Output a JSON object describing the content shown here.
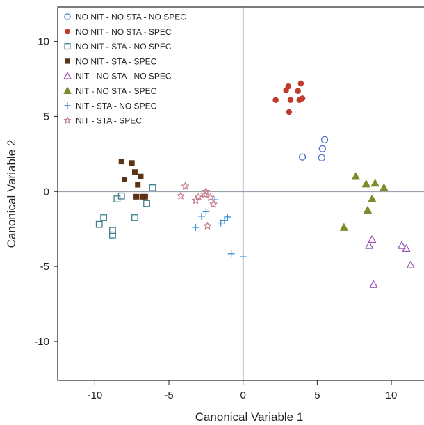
{
  "chart_data": {
    "type": "scatter",
    "xlabel": "Canonical Variable 1",
    "ylabel": "Canonical Variable 2",
    "xlim": [
      -12.5,
      12.2
    ],
    "ylim": [
      -12.6,
      12.3
    ],
    "xticks": [
      -10,
      -5,
      0,
      5,
      10
    ],
    "yticks": [
      -10,
      -5,
      0,
      5,
      10
    ],
    "reference_lines": {
      "x": 0,
      "y": 0
    },
    "legend_position": "top-left",
    "series": [
      {
        "name": "NO NIT - NO STA - NO SPEC",
        "marker": "circle-open",
        "color": "#4a6fc4",
        "points": [
          [
            4.0,
            2.3
          ],
          [
            5.3,
            2.25
          ],
          [
            5.35,
            2.85
          ],
          [
            5.5,
            3.45
          ]
        ]
      },
      {
        "name": "NO NIT - NO STA - SPEC",
        "marker": "circle-filled",
        "color": "#c0392b",
        "points": [
          [
            2.2,
            6.1
          ],
          [
            2.9,
            6.75
          ],
          [
            3.05,
            7.0
          ],
          [
            3.1,
            5.3
          ],
          [
            3.2,
            6.1
          ],
          [
            3.7,
            6.7
          ],
          [
            3.8,
            6.1
          ],
          [
            3.9,
            7.2
          ],
          [
            4.0,
            6.2
          ]
        ]
      },
      {
        "name": "NO NIT - STA - NO SPEC",
        "marker": "square-open",
        "color": "#3f7f8a",
        "points": [
          [
            -9.7,
            -2.2
          ],
          [
            -9.4,
            -1.75
          ],
          [
            -8.8,
            -2.6
          ],
          [
            -8.8,
            -2.9
          ],
          [
            -8.5,
            -0.5
          ],
          [
            -8.2,
            -0.3
          ],
          [
            -7.3,
            -1.75
          ],
          [
            -6.5,
            -0.8
          ],
          [
            -6.1,
            0.25
          ]
        ]
      },
      {
        "name": "NO NIT - STA - SPEC",
        "marker": "square-filled",
        "color": "#5b3314",
        "points": [
          [
            -8.2,
            2.0
          ],
          [
            -8.0,
            0.8
          ],
          [
            -7.5,
            1.9
          ],
          [
            -7.3,
            1.3
          ],
          [
            -7.2,
            -0.35
          ],
          [
            -7.1,
            0.45
          ],
          [
            -6.9,
            1.0
          ],
          [
            -6.8,
            -0.35
          ],
          [
            -6.6,
            -0.35
          ]
        ]
      },
      {
        "name": "NIT - NO STA - NO SPEC",
        "marker": "triangle-open",
        "color": "#9b59b6",
        "points": [
          [
            8.5,
            -3.6
          ],
          [
            8.7,
            -3.2
          ],
          [
            8.8,
            -6.2
          ],
          [
            10.7,
            -3.6
          ],
          [
            11.0,
            -3.8
          ],
          [
            11.3,
            -4.9
          ]
        ]
      },
      {
        "name": "NIT - NO STA - SPEC",
        "marker": "triangle-filled",
        "color": "#7d8c2a",
        "points": [
          [
            6.8,
            -2.4
          ],
          [
            7.6,
            1.0
          ],
          [
            8.3,
            0.5
          ],
          [
            8.4,
            -1.25
          ],
          [
            8.7,
            -0.5
          ],
          [
            8.9,
            0.55
          ],
          [
            9.5,
            0.25
          ]
        ]
      },
      {
        "name": "NIT - STA - NO SPEC",
        "marker": "plus",
        "color": "#3a8fd8",
        "points": [
          [
            -3.2,
            -2.4
          ],
          [
            -2.8,
            -1.65
          ],
          [
            -2.5,
            -1.35
          ],
          [
            -1.9,
            -0.55
          ],
          [
            -1.5,
            -2.1
          ],
          [
            -1.25,
            -1.95
          ],
          [
            -1.05,
            -1.7
          ],
          [
            -0.8,
            -4.15
          ],
          [
            0.0,
            -4.35
          ]
        ]
      },
      {
        "name": "NIT - STA - SPEC",
        "marker": "star-open",
        "color": "#c7808f",
        "points": [
          [
            -4.2,
            -0.3
          ],
          [
            -3.9,
            0.35
          ],
          [
            -3.2,
            -0.6
          ],
          [
            -3.0,
            -0.35
          ],
          [
            -2.6,
            -0.2
          ],
          [
            -2.5,
            0.0
          ],
          [
            -2.4,
            -2.3
          ],
          [
            -2.2,
            -0.4
          ],
          [
            -2.0,
            -0.85
          ]
        ]
      }
    ]
  }
}
